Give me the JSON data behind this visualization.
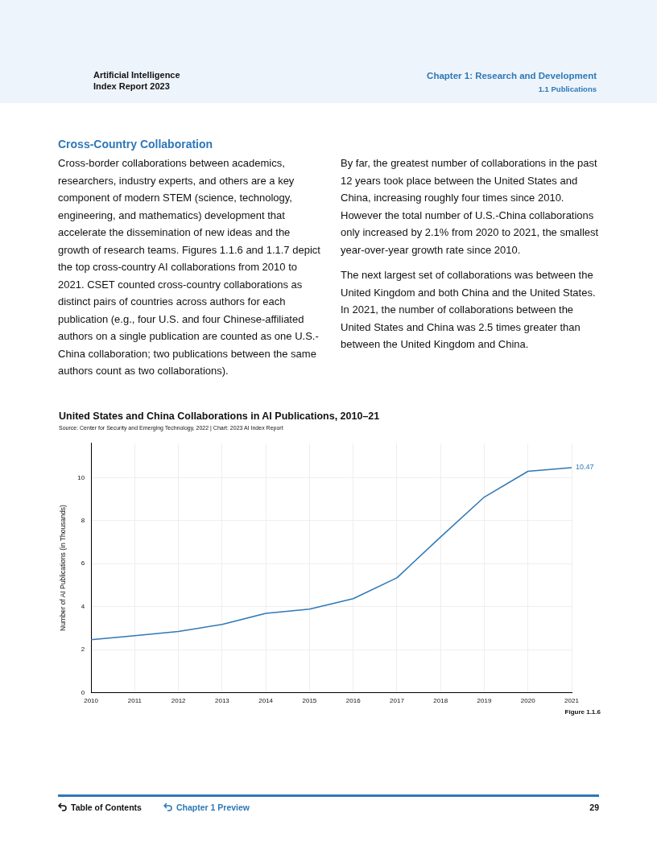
{
  "chart_data": [
    {
      "type": "other",
      "title": "Cross-Country Collaboration",
      "annotations": [
        "Artificial Intelligence",
        "Index Report 2023",
        "Chapter 1: Research and Development",
        "1.1 Publications",
        "Cross-border collaborations between academics, researchers, industry experts, and others are a key component of modern STEM (science, technology, engineering, and mathematics) development that accelerate the dissemination of new ideas and the growth of research teams. Figures 1.1.6 and 1.1.7 depict the top cross-country AI collaborations from 2010 to 2021. CSET counted cross-country collaborations as distinct pairs of countries across authors for each publication (e.g., four U.S. and four Chinese-affiliated authors on a single publication are counted as one U.S.-China collaboration; two publications between the same authors count as two collaborations).",
        "By far, the greatest number of collaborations in the past 12 years took place between the United States and China, increasing roughly four times since 2010. However the total number of U.S.-China collaborations only increased by 2.1% from 2020 to 2021, the smallest year-over-year growth rate since 2010.",
        "The next largest set of collaborations was between the United Kingdom and both China and the United States. In 2021, the number of collaborations between the United States and China was 2.5 times greater than between the United Kingdom and China.",
        "Table of Contents",
        "Chapter 1 Preview",
        "29"
      ]
    },
    {
      "type": "line",
      "title": "United States and China Collaborations in AI Publications, 2010–21",
      "subtitle": "Source: Center for Security and Emerging Technology, 2022 | Chart: 2023 AI Index Report",
      "ylabel": "Number of AI Publications (in Thousands)",
      "categories": [
        "2010",
        "2011",
        "2012",
        "2013",
        "2014",
        "2015",
        "2016",
        "2017",
        "2018",
        "2019",
        "2020",
        "2021"
      ],
      "values": [
        2.46,
        2.65,
        2.84,
        3.17,
        3.69,
        3.88,
        4.37,
        5.34,
        7.24,
        9.1,
        10.3,
        10.47
      ],
      "value_labels": [
        null,
        null,
        null,
        null,
        null,
        null,
        null,
        null,
        null,
        null,
        null,
        "10.47"
      ],
      "color": "#2e78b7",
      "ylim": [
        0,
        11.6
      ],
      "yticks": [
        0,
        2,
        4,
        6,
        8,
        10
      ],
      "grid": true,
      "legend": false,
      "marker": "none",
      "line_style": "solid",
      "annotations": [
        "Figure 1.1.6"
      ]
    }
  ]
}
